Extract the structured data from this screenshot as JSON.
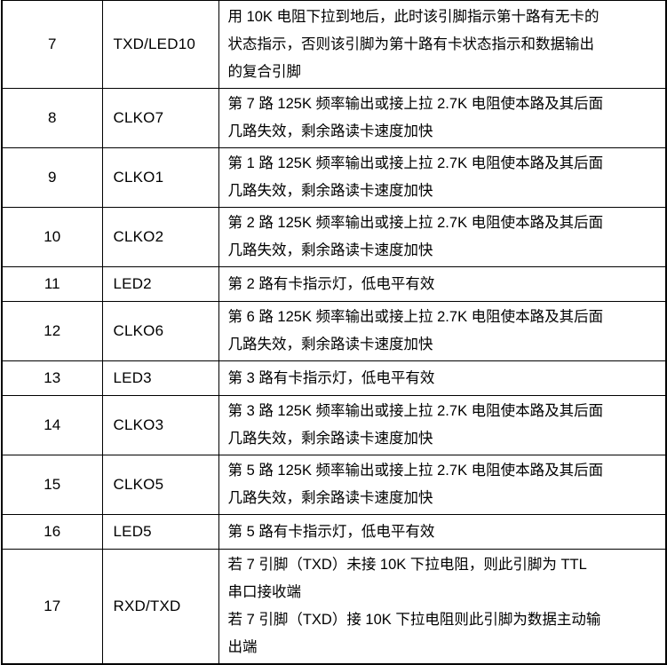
{
  "colors": {
    "background": "#ffffff",
    "text": "#000000",
    "border": "#000000"
  },
  "table": {
    "rows": [
      {
        "pin": "7",
        "name": "TXD/LED10",
        "desc_lines": [
          "用 10K 电阻下拉到地后，此时该引脚指示第十路有无卡的",
          "状态指示，否则该引脚为第十路有卡状态指示和数据输出",
          "的复合引脚"
        ]
      },
      {
        "pin": "8",
        "name": "CLKO7",
        "desc_lines": [
          "第 7 路 125K 频率输出或接上拉 2.7K 电阻使本路及其后面",
          "几路失效，剩余路读卡速度加快"
        ]
      },
      {
        "pin": "9",
        "name": "CLKO1",
        "desc_lines": [
          "第 1 路 125K 频率输出或接上拉 2.7K 电阻使本路及其后面",
          "几路失效，剩余路读卡速度加快"
        ]
      },
      {
        "pin": "10",
        "name": "CLKO2",
        "desc_lines": [
          "第 2 路 125K 频率输出或接上拉 2.7K 电阻使本路及其后面",
          "几路失效，剩余路读卡速度加快"
        ]
      },
      {
        "pin": "11",
        "name": "LED2",
        "desc_lines": [
          "第 2 路有卡指示灯，低电平有效"
        ]
      },
      {
        "pin": "12",
        "name": "CLKO6",
        "desc_lines": [
          "第 6 路 125K 频率输出或接上拉 2.7K 电阻使本路及其后面",
          "几路失效，剩余路读卡速度加快"
        ]
      },
      {
        "pin": "13",
        "name": "LED3",
        "desc_lines": [
          "第 3 路有卡指示灯，低电平有效"
        ]
      },
      {
        "pin": "14",
        "name": "CLKO3",
        "desc_lines": [
          "第 3 路 125K 频率输出或接上拉 2.7K 电阻使本路及其后面",
          "几路失效，剩余路读卡速度加快"
        ]
      },
      {
        "pin": "15",
        "name": "CLKO5",
        "desc_lines": [
          "第 5 路 125K 频率输出或接上拉 2.7K 电阻使本路及其后面",
          "几路失效，剩余路读卡速度加快"
        ]
      },
      {
        "pin": "16",
        "name": "LED5",
        "desc_lines": [
          "第 5 路有卡指示灯，低电平有效"
        ]
      },
      {
        "pin": "17",
        "name": "RXD/TXD",
        "desc_lines": [
          "若 7 引脚（TXD）未接 10K 下拉电阻，则此引脚为 TTL",
          "串口接收端",
          "若 7 引脚（TXD）接 10K 下拉电阻则此引脚为数据主动输",
          "出端"
        ]
      }
    ]
  }
}
